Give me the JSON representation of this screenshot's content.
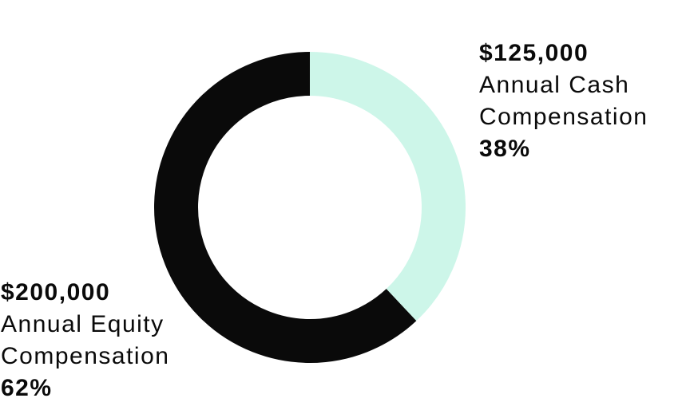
{
  "chart_data": {
    "type": "pie",
    "subtype": "donut",
    "title": "",
    "categories": [
      "Annual Cash Compensation",
      "Annual Equity Compensation"
    ],
    "values": [
      38,
      62
    ],
    "amount_labels": [
      "$125,000",
      "$200,000"
    ],
    "percent_labels": [
      "38%",
      "62%"
    ],
    "colors": [
      "#cdf6e9",
      "#0a0a0a"
    ],
    "start_angle": "12 o'clock",
    "direction": "clockwise",
    "inner_radius_ratio": 0.72,
    "legend_position": "outside annotations (right-top and left-bottom)",
    "background": "#ffffff"
  },
  "annotations": {
    "cash": {
      "amount": "$125,000",
      "name_line1": "Annual Cash",
      "name_line2": "Compensation",
      "percent": "38%"
    },
    "equity": {
      "amount": "$200,000",
      "name_line1": "Annual Equity",
      "name_line2": "Compensation",
      "percent": "62%"
    }
  }
}
